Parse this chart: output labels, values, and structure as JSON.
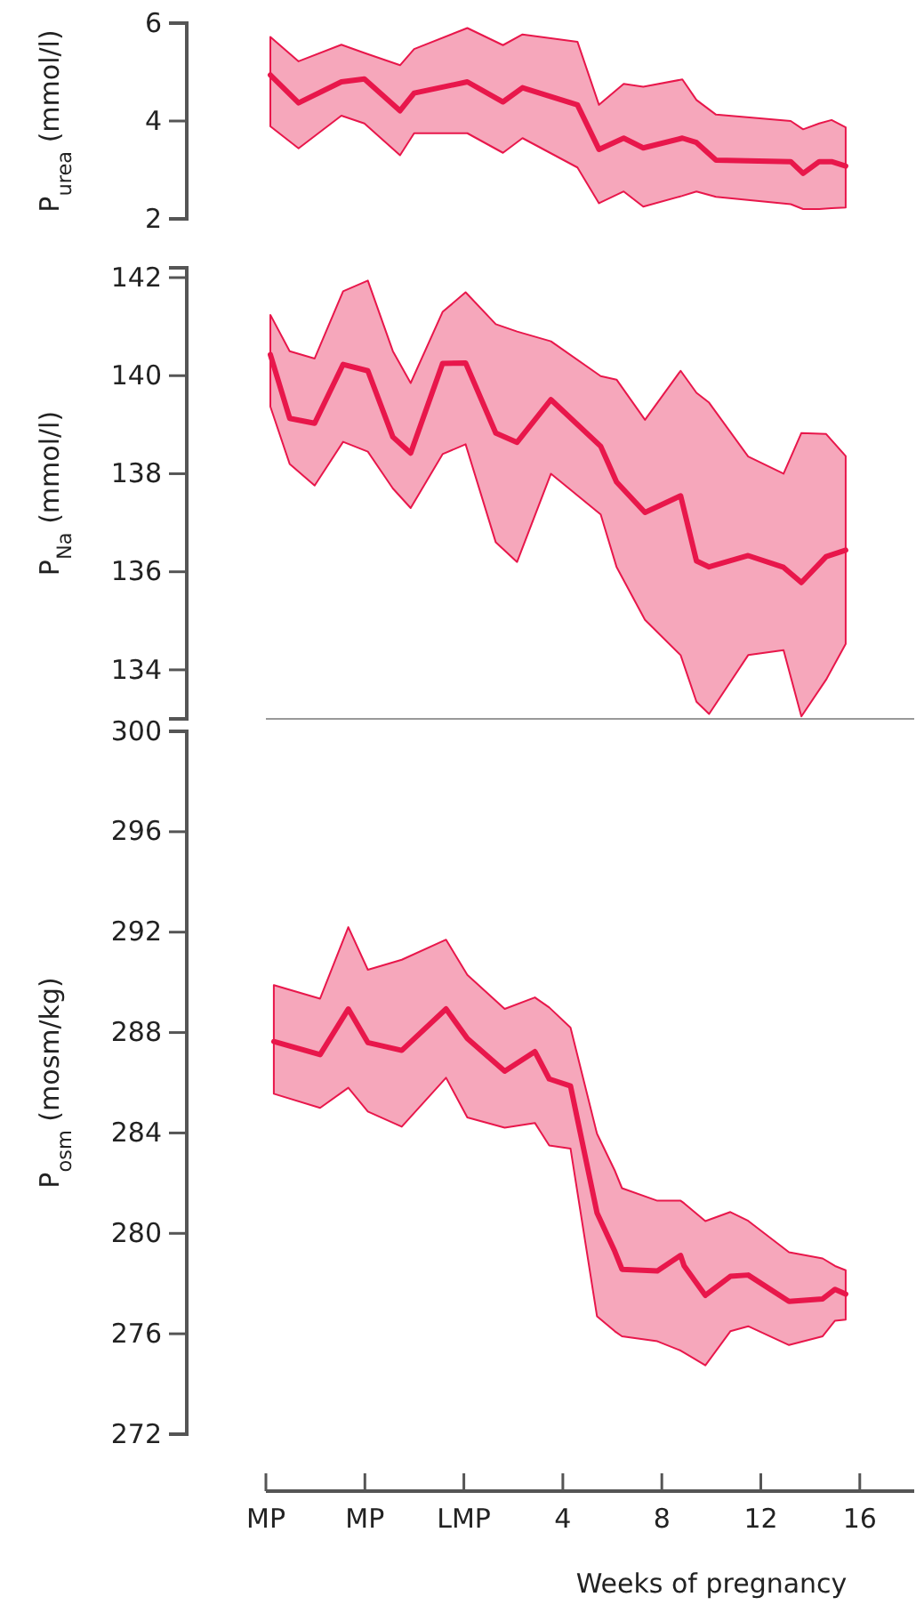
{
  "chart_data": [
    {
      "type": "line",
      "ylabel": "P$_{urea}$ (mmol/l)",
      "xlim": [
        -8,
        18.2
      ],
      "ylim": [
        2,
        6
      ],
      "yticks": [
        2,
        4,
        6
      ],
      "tick_labels": "y",
      "grid": false,
      "marker": "none",
      "line_style": "solid",
      "series": [
        {
          "color": "#e8174b",
          "x": [
            -7.82,
            -6.68,
            -4.95,
            -4.02,
            -2.58,
            -2.01,
            0.14,
            1.58,
            2.37,
            4.59,
            5.46,
            6.46,
            7.25,
            8.83,
            9.4,
            10.19,
            13.21,
            13.71,
            14.36,
            14.86,
            15.43
          ],
          "values": [
            4.94,
            4.37,
            4.8,
            4.86,
            4.21,
            4.57,
            4.8,
            4.39,
            4.68,
            4.33,
            3.42,
            3.65,
            3.45,
            3.65,
            3.56,
            3.2,
            3.17,
            2.93,
            3.17,
            3.17,
            3.08
          ],
          "upper": [
            5.72,
            5.22,
            5.56,
            5.39,
            5.14,
            5.47,
            5.9,
            5.55,
            5.77,
            5.62,
            4.33,
            4.76,
            4.7,
            4.85,
            4.43,
            4.13,
            4.0,
            3.83,
            3.95,
            4.02,
            3.87
          ],
          "lower": [
            3.89,
            3.44,
            4.11,
            3.95,
            3.3,
            3.75,
            3.75,
            3.35,
            3.65,
            3.05,
            2.32,
            2.56,
            2.25,
            2.47,
            2.56,
            2.45,
            2.3,
            2.2,
            2.2,
            2.22,
            2.23
          ]
        }
      ]
    },
    {
      "type": "line",
      "ylabel": "P$_{Na}$ (mmol/l)",
      "xlim": [
        -8,
        18.2
      ],
      "ylim": [
        133,
        142.2
      ],
      "yticks": [
        134,
        136,
        138,
        140,
        142
      ],
      "tick_labels": "y",
      "grid": false,
      "marker": "none",
      "line_style": "solid",
      "series": [
        {
          "color": "#e8174b",
          "x": [
            -7.82,
            -7.04,
            -6.03,
            -4.88,
            -3.88,
            -2.87,
            -2.15,
            -0.86,
            0.07,
            1.29,
            2.15,
            3.52,
            5.53,
            6.17,
            7.32,
            8.76,
            9.4,
            9.91,
            11.49,
            12.92,
            13.64,
            14.64,
            15.43
          ],
          "values": [
            140.43,
            139.13,
            139.03,
            140.23,
            140.1,
            138.75,
            138.42,
            140.25,
            140.26,
            138.83,
            138.64,
            139.51,
            138.56,
            137.83,
            137.21,
            137.55,
            136.22,
            136.1,
            136.33,
            136.09,
            135.78,
            136.31,
            136.44
          ],
          "upper": [
            141.24,
            140.5,
            140.35,
            141.72,
            141.94,
            140.5,
            139.85,
            141.3,
            141.7,
            141.05,
            140.9,
            140.7,
            139.99,
            139.92,
            139.1,
            140.1,
            139.65,
            139.45,
            138.35,
            138.0,
            138.83,
            138.81,
            138.36
          ],
          "lower": [
            139.37,
            138.2,
            137.76,
            138.65,
            138.45,
            137.7,
            137.3,
            138.4,
            138.6,
            136.6,
            136.2,
            138.0,
            137.17,
            136.1,
            135.02,
            134.3,
            133.35,
            133.1,
            134.3,
            134.4,
            133.05,
            133.8,
            134.53
          ]
        }
      ]
    },
    {
      "type": "line",
      "ylabel": "P$_{osm}$ (mosm/kg)",
      "xlabel": "Weeks of pregnancy",
      "xlim": [
        -8,
        18.2
      ],
      "xticks": [
        {
          "value": -8,
          "label": "MP"
        },
        {
          "value": -4,
          "label": "MP"
        },
        {
          "value": 0,
          "label": "LMP"
        },
        4,
        8,
        12,
        16
      ],
      "ylim": [
        272,
        300
      ],
      "yticks": [
        272,
        276,
        280,
        284,
        288,
        292,
        296,
        300
      ],
      "grid": false,
      "marker": "none",
      "line_style": "solid",
      "series": [
        {
          "color": "#e8174b",
          "x": [
            -7.68,
            -5.81,
            -4.67,
            -3.88,
            -2.51,
            -0.72,
            0.14,
            1.65,
            2.87,
            3.45,
            4.31,
            5.38,
            6.1,
            6.39,
            7.82,
            8.76,
            8.9,
            9.76,
            10.77,
            11.49,
            13.14,
            14.5,
            15.0,
            15.43
          ],
          "values": [
            287.64,
            287.12,
            288.94,
            287.6,
            287.29,
            288.94,
            287.76,
            286.46,
            287.24,
            286.15,
            285.87,
            280.82,
            279.28,
            278.57,
            278.5,
            279.12,
            278.71,
            277.53,
            278.29,
            278.34,
            277.29,
            277.39,
            277.77,
            277.58
          ],
          "upper": [
            289.89,
            289.35,
            292.2,
            290.5,
            290.9,
            291.7,
            290.3,
            288.94,
            289.4,
            289.0,
            288.2,
            283.97,
            282.5,
            281.8,
            281.3,
            281.3,
            281.2,
            280.49,
            280.85,
            280.5,
            279.25,
            279.0,
            278.7,
            278.53
          ],
          "lower": [
            285.56,
            285.0,
            285.8,
            284.85,
            284.25,
            286.2,
            284.62,
            284.21,
            284.4,
            283.5,
            283.38,
            276.7,
            276.1,
            275.9,
            275.7,
            275.33,
            275.25,
            274.74,
            276.1,
            276.3,
            275.55,
            275.9,
            276.52,
            276.56
          ]
        }
      ]
    }
  ]
}
